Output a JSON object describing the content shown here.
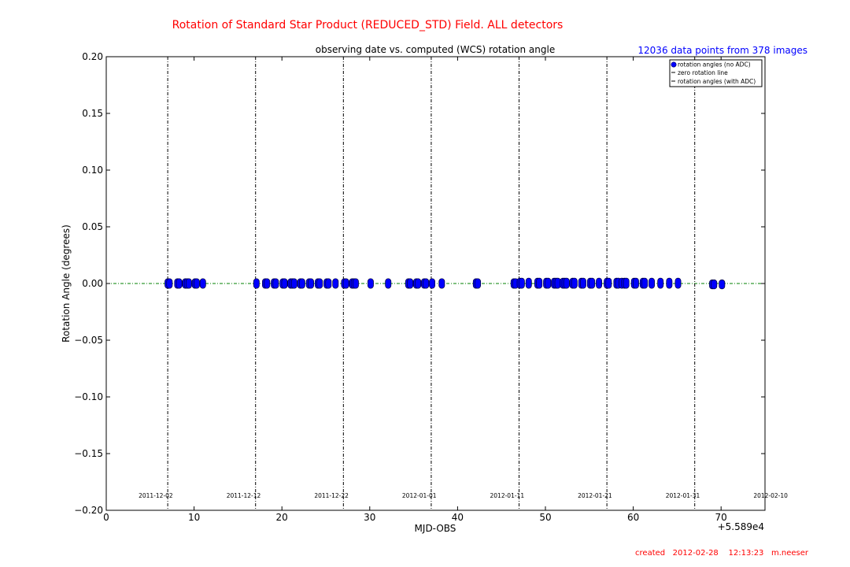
{
  "header": {
    "title": "Rotation of Standard Star Product (REDUCED_STD) Field.  ALL detectors",
    "subtitle": "observing date vs. computed (WCS) rotation angle",
    "data_count": "12036 data points from 378 images",
    "created": "created   2012-02-28    12:13:23   m.neeser",
    "title_color": "#ff0000",
    "count_color": "#0000ff"
  },
  "chart_data": {
    "type": "scatter",
    "xlabel": "MJD-OBS",
    "ylabel": "Rotation Angle (degrees)",
    "x_offset_label": "+5.589e4",
    "xlim": [
      0,
      75
    ],
    "ylim": [
      -0.2,
      0.2
    ],
    "x_ticks": [
      0,
      10,
      20,
      30,
      40,
      50,
      60,
      70
    ],
    "y_ticks": [
      0.2,
      0.15,
      0.1,
      0.05,
      0.0,
      -0.05,
      -0.1,
      -0.15,
      -0.2
    ],
    "x_tick_labels": [
      "0",
      "10",
      "20",
      "30",
      "40",
      "50",
      "60",
      "70"
    ],
    "y_tick_labels": [
      "0.20",
      "0.15",
      "0.10",
      "0.05",
      "0.00",
      "−0.05",
      "−0.10",
      "−0.15",
      "−0.20"
    ],
    "date_markers": [
      {
        "x": 7,
        "label": "2011-12-02"
      },
      {
        "x": 17,
        "label": "2011-12-12"
      },
      {
        "x": 27,
        "label": "2011-12-22"
      },
      {
        "x": 37,
        "label": "2012-01-01"
      },
      {
        "x": 47,
        "label": "2012-01-11"
      },
      {
        "x": 57,
        "label": "2012-01-21"
      },
      {
        "x": 67,
        "label": "2012-01-31"
      },
      {
        "x": 77,
        "label": "2012-02-10"
      }
    ],
    "legend": {
      "placement": "top-right",
      "entries": [
        "rotation angles (no ADC)",
        "zero rotation line",
        "rotation angles (with ADC)"
      ]
    },
    "zero_line": {
      "y": 0,
      "color": "#008000"
    },
    "series": [
      {
        "name": "rotation angles (no ADC)",
        "color": "#0000ff",
        "x": [
          7.0,
          7.2,
          8.1,
          8.3,
          9.0,
          9.2,
          9.4,
          10.1,
          10.3,
          11.0,
          17.1,
          18.1,
          18.3,
          19.1,
          19.3,
          20.1,
          20.3,
          21.0,
          21.2,
          21.4,
          22.1,
          22.3,
          23.1,
          23.3,
          24.1,
          24.3,
          25.1,
          25.3,
          26.1,
          27.1,
          27.3,
          28.0,
          28.2,
          28.4,
          30.1,
          32.1,
          34.4,
          34.6,
          35.3,
          35.5,
          36.2,
          36.4,
          37.1,
          38.2,
          42.1,
          42.3,
          46.4,
          46.6,
          47.1,
          47.3,
          48.1,
          49.1,
          49.3,
          50.1,
          50.3,
          51.0,
          51.2,
          51.4,
          52.0,
          52.2,
          52.4,
          53.1,
          53.3,
          54.1,
          54.3,
          55.1,
          55.3,
          56.1,
          57.0,
          57.2,
          58.1,
          58.3,
          58.7,
          59.0,
          59.2,
          60.1,
          60.3,
          61.1,
          61.3,
          62.1,
          63.1,
          64.1,
          65.1,
          69.0,
          69.2,
          70.1
        ],
        "y": [
          0.0,
          0.0,
          0.0,
          0.0,
          0.0,
          0.0,
          0.0,
          0.0,
          0.0,
          0.0,
          0.0,
          0.0,
          0.0,
          0.0,
          0.0,
          0.0,
          0.0,
          0.0,
          0.0,
          0.0,
          0.0,
          0.0,
          0.0,
          0.0,
          0.0,
          0.0,
          0.0,
          0.0,
          0.0,
          0.0,
          0.0,
          0.0,
          0.0,
          0.0,
          0.0,
          0.0,
          0.0,
          0.0,
          0.0,
          0.0,
          0.0,
          0.0,
          0.0,
          0.0,
          0.0,
          0.0,
          0.0,
          0.0,
          0.0,
          0.0,
          0.0,
          0.0,
          0.0,
          0.0,
          0.0,
          0.0,
          0.0,
          0.0,
          0.0,
          0.0,
          0.0,
          0.0,
          0.0,
          0.0,
          0.0,
          0.0,
          0.0,
          0.0,
          0.0,
          0.0,
          0.0,
          0.0,
          0.0,
          0.0,
          0.0,
          0.0,
          0.0,
          0.0,
          0.0,
          0.0,
          0.0,
          0.0,
          0.0,
          -0.001,
          -0.001,
          -0.001
        ],
        "ymin": [
          -0.0025,
          -0.0025,
          -0.0025,
          -0.0025,
          -0.0025,
          -0.0025,
          -0.0025,
          -0.0025,
          -0.0025,
          -0.0025,
          -0.0025,
          -0.0025,
          -0.0025,
          -0.0025,
          -0.0025,
          -0.0025,
          -0.0025,
          -0.0025,
          -0.0025,
          -0.0025,
          -0.0025,
          -0.0025,
          -0.0025,
          -0.0025,
          -0.0025,
          -0.0025,
          -0.0025,
          -0.0025,
          -0.0025,
          -0.0025,
          -0.0025,
          -0.0025,
          -0.0025,
          -0.0025,
          -0.0025,
          -0.0025,
          -0.0025,
          -0.0025,
          -0.0025,
          -0.0025,
          -0.0025,
          -0.0025,
          -0.0025,
          -0.0025,
          -0.0025,
          -0.0025,
          -0.0025,
          -0.0025,
          -0.0025,
          -0.0025,
          -0.0025,
          -0.0025,
          -0.0025,
          -0.0025,
          -0.0025,
          -0.0025,
          -0.0025,
          -0.0025,
          -0.0025,
          -0.0025,
          -0.0025,
          -0.0025,
          -0.0025,
          -0.0025,
          -0.0025,
          -0.0025,
          -0.0025,
          -0.0025,
          -0.0025,
          -0.0025,
          -0.0025,
          -0.0025,
          -0.0025,
          -0.0025,
          -0.0025,
          -0.0025,
          -0.0025,
          -0.0025,
          -0.0025,
          -0.0025,
          -0.0025,
          -0.0025,
          -0.0025,
          -0.003,
          -0.003,
          -0.003
        ],
        "ymax": [
          0.0025,
          0.0025,
          0.0025,
          0.0025,
          0.0025,
          0.0025,
          0.0025,
          0.0025,
          0.0025,
          0.0025,
          0.0025,
          0.0025,
          0.0025,
          0.0025,
          0.0025,
          0.0025,
          0.0025,
          0.0025,
          0.0025,
          0.0025,
          0.0025,
          0.0025,
          0.0025,
          0.0025,
          0.0025,
          0.0025,
          0.0025,
          0.0025,
          0.0025,
          0.0025,
          0.0025,
          0.0025,
          0.0025,
          0.0025,
          0.0025,
          0.0025,
          0.0025,
          0.0025,
          0.0025,
          0.0025,
          0.0025,
          0.0025,
          0.0025,
          0.0025,
          0.0025,
          0.0025,
          0.0025,
          0.0025,
          0.003,
          0.003,
          0.003,
          0.003,
          0.003,
          0.003,
          0.003,
          0.003,
          0.003,
          0.003,
          0.003,
          0.003,
          0.003,
          0.003,
          0.003,
          0.003,
          0.003,
          0.003,
          0.003,
          0.003,
          0.003,
          0.003,
          0.003,
          0.003,
          0.003,
          0.003,
          0.003,
          0.003,
          0.003,
          0.003,
          0.003,
          0.003,
          0.003,
          0.003,
          0.003,
          0.0015,
          0.0015,
          0.0015
        ]
      }
    ]
  }
}
